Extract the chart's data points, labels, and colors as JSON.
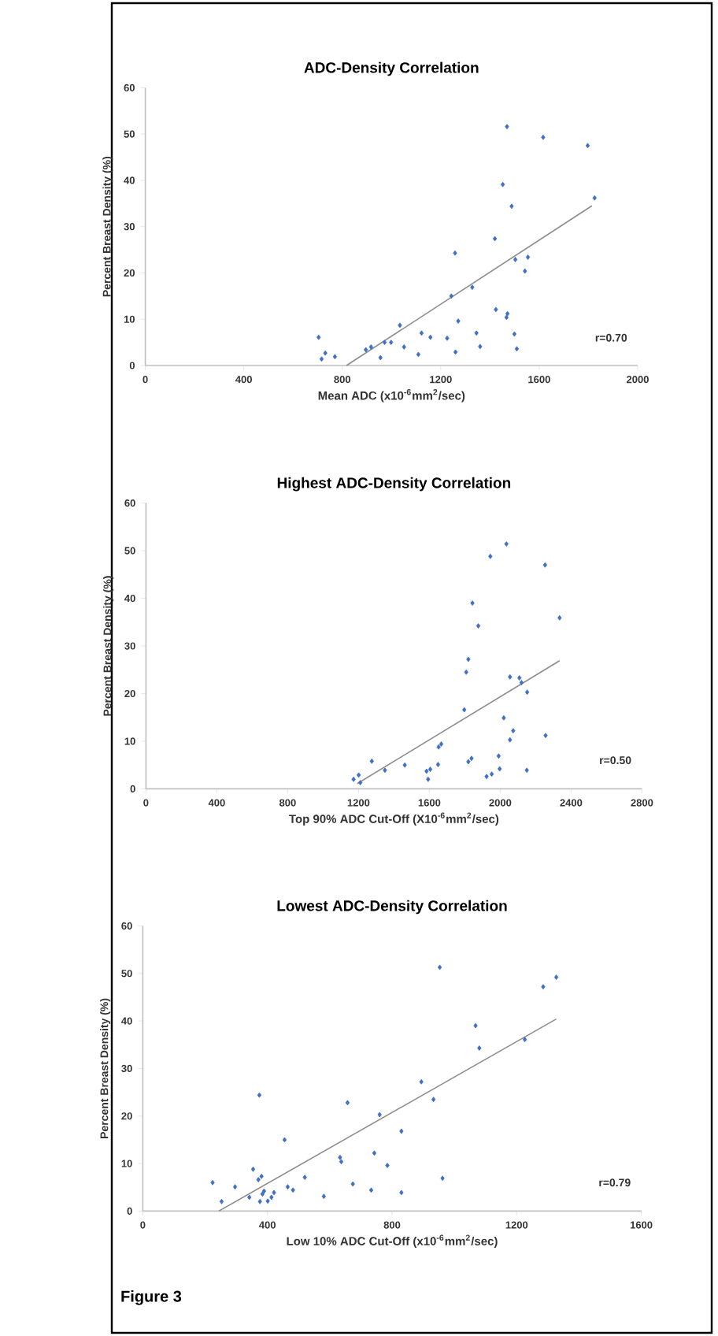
{
  "chart_data": [
    {
      "type": "scatter",
      "title": "ADC-Density Correlation",
      "xlabel": "Mean ADC (x10$^{-6}$mm$^{2}$/sec)",
      "ylabel": "Percent Breast Density (%)",
      "xlim": [
        0,
        2000
      ],
      "xticks": [
        0,
        400,
        800,
        1200,
        1600,
        2000
      ],
      "ylim": [
        0,
        60
      ],
      "yticks": [
        0,
        10,
        20,
        30,
        40,
        50,
        60
      ],
      "grid": false,
      "series": [
        {
          "marker": "diamond",
          "color": "#3f6fc6",
          "x": [
            704,
            716,
            731,
            770,
            896,
            917,
            972,
            998,
            955,
            1034,
            1051,
            1109,
            1122,
            1158,
            1226,
            1243,
            1258,
            1260,
            1271,
            1328,
            1345,
            1360,
            1420,
            1424,
            1452,
            1467,
            1471,
            1469,
            1488,
            1499,
            1503,
            1509,
            1542,
            1554,
            1616,
            1797,
            1825
          ],
          "values": [
            6.1,
            1.4,
            2.7,
            1.9,
            3.4,
            4.0,
            5.0,
            5.0,
            1.7,
            8.7,
            4.0,
            2.4,
            7.0,
            6.1,
            5.9,
            15,
            24.3,
            2.9,
            9.6,
            16.9,
            7.0,
            4.1,
            27.4,
            12.1,
            39.1,
            10.4,
            11.2,
            51.6,
            34.4,
            6.8,
            22.9,
            3.6,
            20.4,
            23.4,
            49.3,
            47.5,
            36.2
          ]
        },
        {
          "type": "line",
          "marker": "none",
          "color": "#8c8c8c",
          "x": [
            817,
            1814
          ],
          "values": [
            0,
            34.5
          ]
        }
      ],
      "annotations": [
        "r=0.70"
      ]
    },
    {
      "type": "scatter",
      "title": "Highest ADC-Density Correlation",
      "xlabel": "Top 90% ADC Cut-Off (X10$^{-6}$mm$^{2}$/sec)",
      "ylabel": "Percent Breast Density (%)",
      "xlim": [
        0,
        2800
      ],
      "xticks": [
        0,
        400,
        800,
        1200,
        1600,
        2000,
        2400,
        2800
      ],
      "ylim": [
        0,
        60
      ],
      "yticks": [
        0,
        10,
        20,
        30,
        40,
        50,
        60
      ],
      "grid": false,
      "series": [
        {
          "marker": "diamond",
          "color": "#3f6fc6",
          "x": [
            1172,
            1201,
            1210,
            1275,
            1349,
            1461,
            1584,
            1593,
            1605,
            1649,
            1652,
            1667,
            1797,
            1808,
            1820,
            1820,
            1838,
            1843,
            1876,
            1923,
            1944,
            1952,
            1991,
            1997,
            2020,
            2035,
            2055,
            2055,
            2073,
            2108,
            2120,
            2150,
            2152,
            2253,
            2256,
            2335
          ],
          "values": [
            2.0,
            2.9,
            1.3,
            5.8,
            3.9,
            5.0,
            3.7,
            2.0,
            4.1,
            5.1,
            8.8,
            9.4,
            16.6,
            24.5,
            27.2,
            5.7,
            6.4,
            39.0,
            34.2,
            2.6,
            48.8,
            3.1,
            6.9,
            4.2,
            14.9,
            51.4,
            10.3,
            23.5,
            12.2,
            23.3,
            22.3,
            3.9,
            20.3,
            47.0,
            11.2,
            35.9
          ]
        },
        {
          "type": "line",
          "marker": "none",
          "color": "#8c8c8c",
          "x": [
            1193,
            2335
          ],
          "values": [
            1.1,
            26.9
          ]
        }
      ],
      "annotations": [
        "r=0.50"
      ]
    },
    {
      "type": "scatter",
      "title": "Lowest ADC-Density Correlation",
      "xlabel": "Low 10% ADC Cut-Off (x10$^{-6}$mm$^{2}$/sec)",
      "ylabel": "Percent Breast Density (%)",
      "xlim": [
        0,
        1600
      ],
      "xticks": [
        0,
        400,
        800,
        1200,
        1600
      ],
      "ylim": [
        0,
        60
      ],
      "yticks": [
        0,
        10,
        20,
        30,
        40,
        50,
        60
      ],
      "grid": false,
      "series": [
        {
          "marker": "diamond",
          "color": "#3f6fc6",
          "x": [
            224,
            253,
            296,
            342,
            371,
            381,
            354,
            374,
            376,
            384,
            389,
            401,
            413,
            421,
            455,
            465,
            482,
            520,
            581,
            633,
            637,
            657,
            674,
            733,
            743,
            760,
            785,
            830,
            830,
            894,
            933,
            953,
            962,
            1068,
            1080,
            1226,
            1285,
            1327
          ],
          "values": [
            6.0,
            2.0,
            5.1,
            2.9,
            6.6,
            7.3,
            8.8,
            24.4,
            2.0,
            3.6,
            4.2,
            2.1,
            2.9,
            3.9,
            15.0,
            5.1,
            4.4,
            7.1,
            3.1,
            11.3,
            10.4,
            22.8,
            5.7,
            4.4,
            12.2,
            20.3,
            9.6,
            16.8,
            3.9,
            27.2,
            23.5,
            51.3,
            6.9,
            39.0,
            34.3,
            36.1,
            47.2,
            49.2
          ]
        },
        {
          "type": "line",
          "marker": "none",
          "color": "#8c8c8c",
          "x": [
            244,
            1327
          ],
          "values": [
            0,
            40.4
          ]
        }
      ],
      "annotations": [
        "r=0.79",
        "Figure 3"
      ]
    }
  ]
}
